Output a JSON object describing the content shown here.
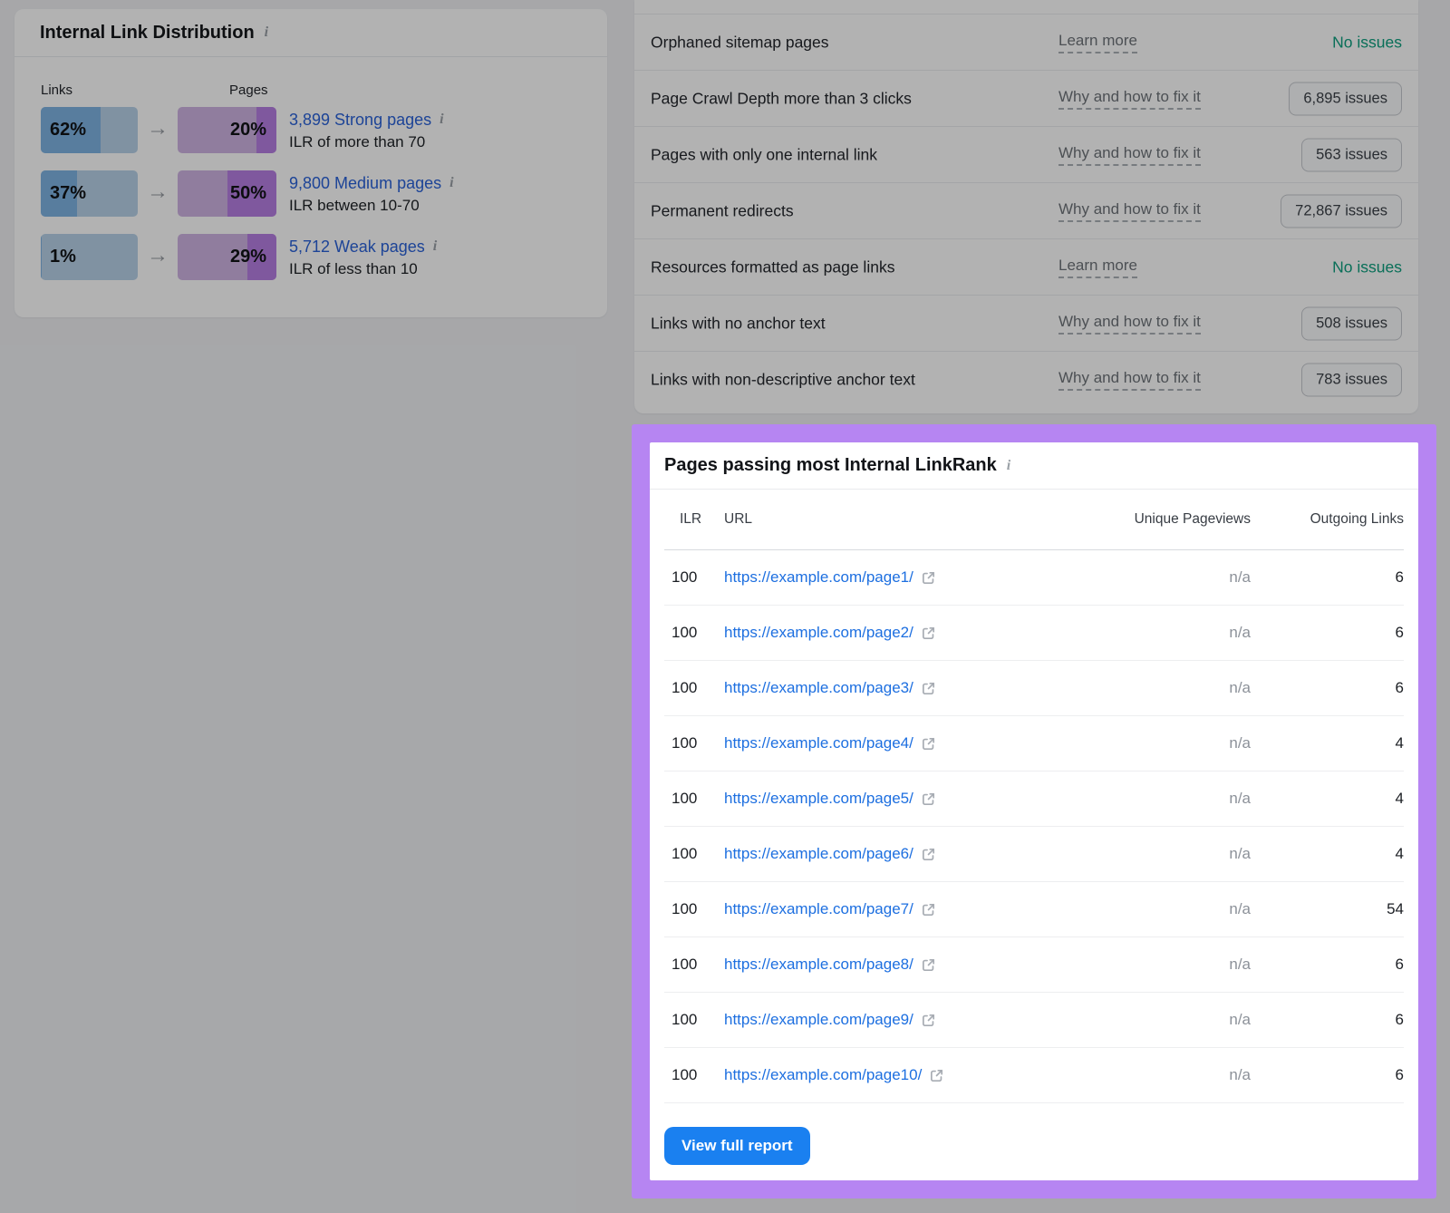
{
  "colors": {
    "highlight_border": "#b685f2",
    "link_blue": "#1d6fe0",
    "distribution_link_blue": "#2a62d8",
    "button_blue": "#1a80f0",
    "no_issues_green": "#0d9f7f",
    "links_bar_fill": "#7eb3e3",
    "links_bar_track": "#b8d2e9",
    "pages_bar_fill": "#b77ee2",
    "pages_bar_track": "#cfb4e3"
  },
  "ild_card": {
    "title": "Internal Link Distribution",
    "info_icon": "i",
    "links_col_label": "Links",
    "pages_col_label": "Pages",
    "arrow": "→",
    "rows": [
      {
        "links_pct": "62%",
        "pages_pct": "20%",
        "link_label": "3,899 Strong pages",
        "desc": "ILR of more than 70"
      },
      {
        "links_pct": "37%",
        "pages_pct": "50%",
        "link_label": "9,800 Medium pages",
        "desc": "ILR between 10-70"
      },
      {
        "links_pct": "1%",
        "pages_pct": "29%",
        "link_label": "5,712 Weak pages",
        "desc": "ILR of less than 10"
      }
    ]
  },
  "issues_panel": {
    "rows": [
      {
        "label": "Orphaned sitemap pages",
        "action": "Learn more",
        "status": "No issues"
      },
      {
        "label": "Page Crawl Depth more than 3 clicks",
        "action": "Why and how to fix it",
        "status": "6,895 issues"
      },
      {
        "label": "Pages with only one internal link",
        "action": "Why and how to fix it",
        "status": "563 issues"
      },
      {
        "label": "Permanent redirects",
        "action": "Why and how to fix it",
        "status": "72,867 issues"
      },
      {
        "label": "Resources formatted as page links",
        "action": "Learn more",
        "status": "No issues"
      },
      {
        "label": "Links with no anchor text",
        "action": "Why and how to fix it",
        "status": "508 issues"
      },
      {
        "label": "Links with non-descriptive anchor text",
        "action": "Why and how to fix it",
        "status": "783 issues"
      }
    ]
  },
  "ilr_panel": {
    "title": "Pages passing most Internal LinkRank",
    "info_icon": "i",
    "headers": {
      "ilr": "ILR",
      "url": "URL",
      "pageviews": "Unique Pageviews",
      "outgoing": "Outgoing Links"
    },
    "rows": [
      {
        "ilr": "100",
        "url": "https://example.com/page1/",
        "pageviews": "n/a",
        "outgoing": "6"
      },
      {
        "ilr": "100",
        "url": "https://example.com/page2/",
        "pageviews": "n/a",
        "outgoing": "6"
      },
      {
        "ilr": "100",
        "url": "https://example.com/page3/",
        "pageviews": "n/a",
        "outgoing": "6"
      },
      {
        "ilr": "100",
        "url": "https://example.com/page4/",
        "pageviews": "n/a",
        "outgoing": "4"
      },
      {
        "ilr": "100",
        "url": "https://example.com/page5/",
        "pageviews": "n/a",
        "outgoing": "4"
      },
      {
        "ilr": "100",
        "url": "https://example.com/page6/",
        "pageviews": "n/a",
        "outgoing": "4"
      },
      {
        "ilr": "100",
        "url": "https://example.com/page7/",
        "pageviews": "n/a",
        "outgoing": "54"
      },
      {
        "ilr": "100",
        "url": "https://example.com/page8/",
        "pageviews": "n/a",
        "outgoing": "6"
      },
      {
        "ilr": "100",
        "url": "https://example.com/page9/",
        "pageviews": "n/a",
        "outgoing": "6"
      },
      {
        "ilr": "100",
        "url": "https://example.com/page10/",
        "pageviews": "n/a",
        "outgoing": "6"
      }
    ],
    "view_full_report": "View full report"
  }
}
